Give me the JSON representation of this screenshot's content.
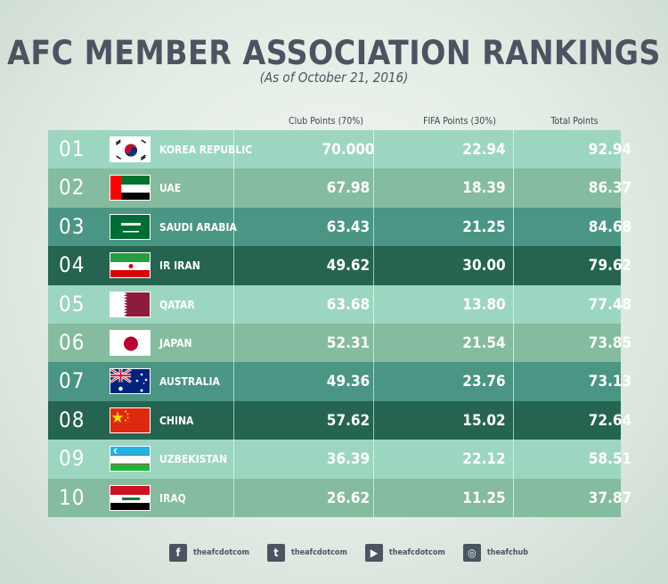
{
  "title": "AFC MEMBER ASSOCIATION RANKINGS",
  "subtitle": "(As of October 21, 2016)",
  "columns": {
    "club": "Club Points (70%)",
    "fifa": "FIFA Points (30%)",
    "total": "Total  Points"
  },
  "rows": [
    {
      "rank": "01",
      "country": "KOREA REPUBLIC",
      "club": "70.000",
      "fifa": "22.94",
      "total": "92.94",
      "flag": "korea-flag",
      "bg": "#9dd6c0"
    },
    {
      "rank": "02",
      "country": "UAE",
      "club": "67.98",
      "fifa": "18.39",
      "total": "86.37",
      "flag": "uae-flag",
      "bg": "#85bb9e"
    },
    {
      "rank": "03",
      "country": "SAUDI ARABIA",
      "club": "63.43",
      "fifa": "21.25",
      "total": "84.68",
      "flag": "saudi-flag",
      "bg": "#4a9583"
    },
    {
      "rank": "04",
      "country": "IR IRAN",
      "club": "49.62",
      "fifa": "30.00",
      "total": "79.62",
      "flag": "iran-flag",
      "bg": "#256451"
    },
    {
      "rank": "05",
      "country": "QATAR",
      "club": "63.68",
      "fifa": "13.80",
      "total": "77.48",
      "flag": "qatar-flag",
      "bg": "#9dd6c0"
    },
    {
      "rank": "06",
      "country": "JAPAN",
      "club": "52.31",
      "fifa": "21.54",
      "total": "73.85",
      "flag": "japan-flag",
      "bg": "#85bb9e"
    },
    {
      "rank": "07",
      "country": "AUSTRALIA",
      "club": "49.36",
      "fifa": "23.76",
      "total": "73.13",
      "flag": "australia-flag",
      "bg": "#4a9583"
    },
    {
      "rank": "08",
      "country": "CHINA",
      "club": "57.62",
      "fifa": "15.02",
      "total": "72.64",
      "flag": "china-flag",
      "bg": "#256451"
    },
    {
      "rank": "09",
      "country": "UZBEKISTAN",
      "club": "36.39",
      "fifa": "22.12",
      "total": "58.51",
      "flag": "uzbekistan-flag",
      "bg": "#9dd6c0"
    },
    {
      "rank": "10",
      "country": "IRAQ",
      "club": "26.62",
      "fifa": "11.25",
      "total": "37.87",
      "flag": "iraq-flag",
      "bg": "#85bb9e"
    }
  ],
  "social": [
    {
      "icon": "facebook-icon",
      "glyph": "f",
      "label": "theafcdotcom"
    },
    {
      "icon": "twitter-icon",
      "glyph": "t",
      "label": "theafcdotcom"
    },
    {
      "icon": "youtube-icon",
      "glyph": "▶",
      "label": "theafcdotcom"
    },
    {
      "icon": "instagram-icon",
      "glyph": "◎",
      "label": "theafchub"
    }
  ]
}
